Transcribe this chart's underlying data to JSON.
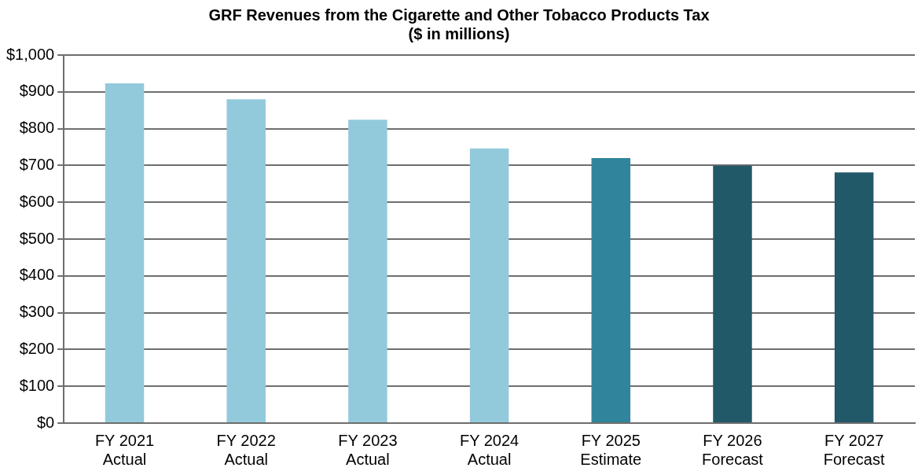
{
  "chart_data": {
    "type": "bar",
    "title": "GRF Revenues from the Cigarette and Other Tobacco Products Tax",
    "subtitle": "($ in millions)",
    "categories": [
      "FY 2021\nActual",
      "FY 2022\nActual",
      "FY 2023\nActual",
      "FY 2024\nActual",
      "FY 2025\nEstimate",
      "FY 2026\nForecast",
      "FY 2027\nForecast"
    ],
    "values": [
      923,
      880,
      824,
      746,
      720,
      699,
      681
    ],
    "colors": [
      "#92cadc",
      "#92cadc",
      "#92cadc",
      "#92cadc",
      "#30859c",
      "#215968",
      "#215968"
    ],
    "ylim": [
      0,
      1000
    ],
    "yticks": [
      {
        "value": 0,
        "label": "$0"
      },
      {
        "value": 100,
        "label": "$100"
      },
      {
        "value": 200,
        "label": "$200"
      },
      {
        "value": 300,
        "label": "$300"
      },
      {
        "value": 400,
        "label": "$400"
      },
      {
        "value": 500,
        "label": "$500"
      },
      {
        "value": 600,
        "label": "$600"
      },
      {
        "value": 700,
        "label": "$700"
      },
      {
        "value": 800,
        "label": "$800"
      },
      {
        "value": 900,
        "label": "$900"
      },
      {
        "value": 1000,
        "label": "$1,000"
      }
    ],
    "grid": "y",
    "legend": false
  }
}
